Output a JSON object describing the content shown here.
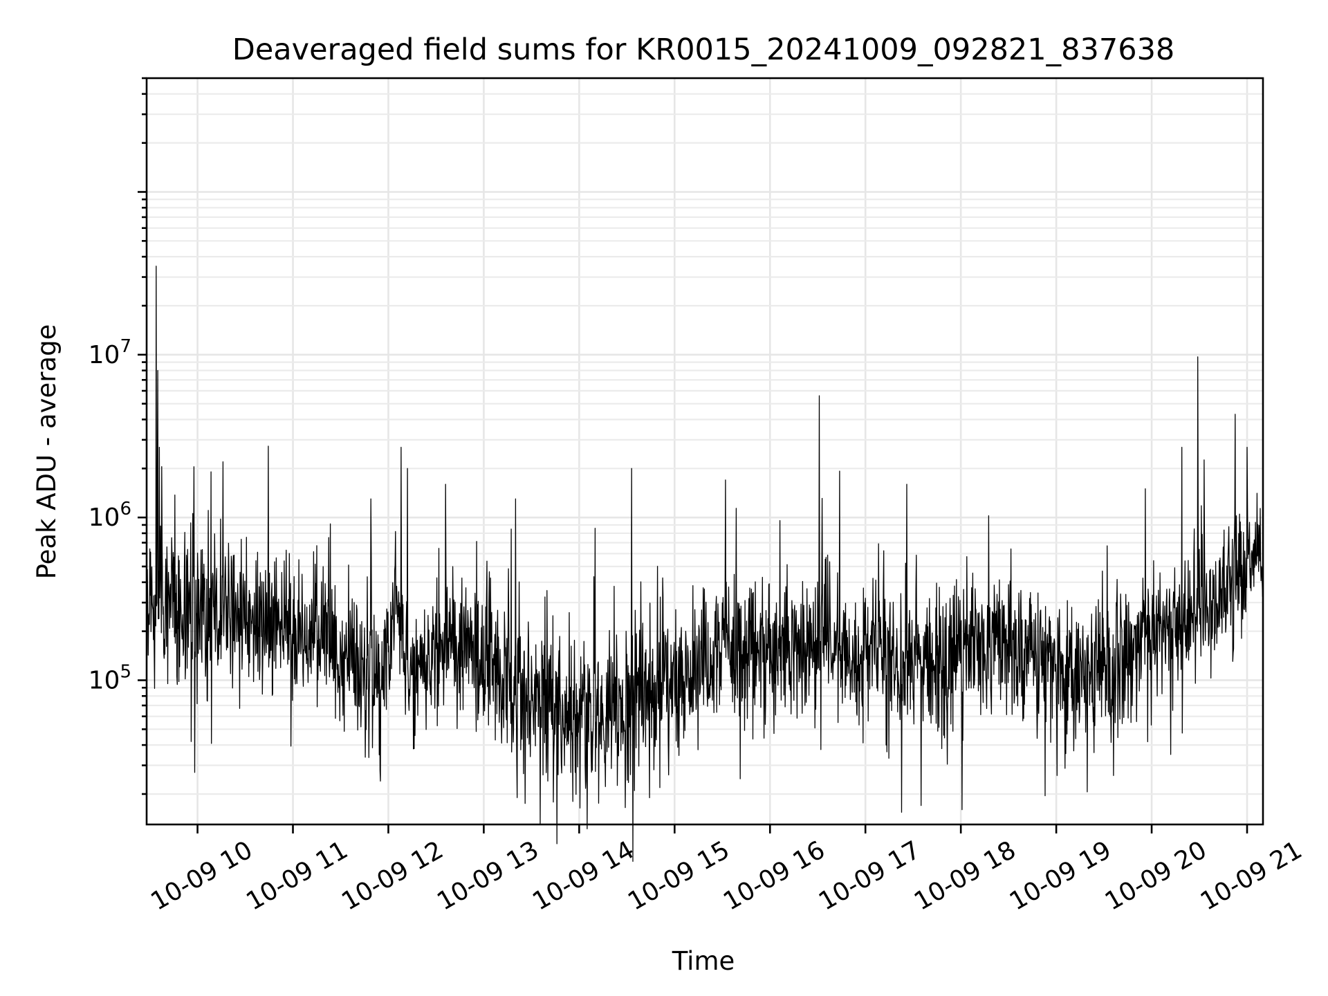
{
  "chart_data": {
    "type": "line",
    "title": "Deaveraged field sums for KR0015_20241009_092821_837638",
    "xlabel": "Time",
    "ylabel": "Peak ADU - average",
    "xscale": "time",
    "yscale": "log",
    "xlim": [
      "2024-10-09T09:28",
      "2024-10-09T21:10"
    ],
    "ylim": [
      13000,
      500000000
    ],
    "grid": true,
    "legend": "none",
    "line_color": "#000000",
    "x_ticks": [
      {
        "label": "10-09 10",
        "time": "2024-10-09T10:00"
      },
      {
        "label": "10-09 11",
        "time": "2024-10-09T11:00"
      },
      {
        "label": "10-09 12",
        "time": "2024-10-09T12:00"
      },
      {
        "label": "10-09 13",
        "time": "2024-10-09T13:00"
      },
      {
        "label": "10-09 14",
        "time": "2024-10-09T14:00"
      },
      {
        "label": "10-09 15",
        "time": "2024-10-09T15:00"
      },
      {
        "label": "10-09 16",
        "time": "2024-10-09T16:00"
      },
      {
        "label": "10-09 17",
        "time": "2024-10-09T17:00"
      },
      {
        "label": "10-09 18",
        "time": "2024-10-09T18:00"
      },
      {
        "label": "10-09 19",
        "time": "2024-10-09T19:00"
      },
      {
        "label": "10-09 20",
        "time": "2024-10-09T20:00"
      },
      {
        "label": "10-09 21",
        "time": "2024-10-09T21:00"
      }
    ],
    "y_ticks": [
      {
        "base": "10",
        "exp": "5",
        "value": 100000
      },
      {
        "base": "10",
        "exp": "6",
        "value": 1000000
      },
      {
        "base": "10",
        "exp": "7",
        "value": 10000000
      }
    ],
    "series": [
      {
        "baseline": [
          [
            "2024-10-09T09:28",
            330000
          ],
          [
            "2024-10-09T10:00",
            260000
          ],
          [
            "2024-10-09T10:30",
            240000
          ],
          [
            "2024-10-09T11:00",
            210000
          ],
          [
            "2024-10-09T11:30",
            160000
          ],
          [
            "2024-10-09T11:55",
            90000
          ],
          [
            "2024-10-09T12:05",
            350000
          ],
          [
            "2024-10-09T12:10",
            120000
          ],
          [
            "2024-10-09T12:30",
            170000
          ],
          [
            "2024-10-09T13:00",
            140000
          ],
          [
            "2024-10-09T13:30",
            80000
          ],
          [
            "2024-10-09T14:00",
            60000
          ],
          [
            "2024-10-09T14:30",
            70000
          ],
          [
            "2024-10-09T15:00",
            110000
          ],
          [
            "2024-10-09T15:30",
            150000
          ],
          [
            "2024-10-09T16:00",
            160000
          ],
          [
            "2024-10-09T16:30",
            170000
          ],
          [
            "2024-10-09T17:00",
            150000
          ],
          [
            "2024-10-09T17:30",
            120000
          ],
          [
            "2024-10-09T18:00",
            140000
          ],
          [
            "2024-10-09T18:30",
            180000
          ],
          [
            "2024-10-09T19:00",
            110000
          ],
          [
            "2024-10-09T19:30",
            120000
          ],
          [
            "2024-10-09T20:00",
            180000
          ],
          [
            "2024-10-09T20:30",
            280000
          ],
          [
            "2024-10-09T21:00",
            520000
          ],
          [
            "2024-10-09T21:10",
            600000
          ]
        ],
        "spikes": [
          [
            "2024-10-09T09:34",
            35000000
          ],
          [
            "2024-10-09T09:35",
            8000000
          ],
          [
            "2024-10-09T09:36",
            2700000
          ],
          [
            "2024-10-09T10:16",
            2200000
          ],
          [
            "2024-10-09T11:49",
            1300000
          ],
          [
            "2024-10-09T12:08",
            2700000
          ],
          [
            "2024-10-09T12:12",
            2000000
          ],
          [
            "2024-10-09T12:36",
            1600000
          ],
          [
            "2024-10-09T13:20",
            1300000
          ],
          [
            "2024-10-09T14:33",
            2000000
          ],
          [
            "2024-10-09T15:32",
            1700000
          ],
          [
            "2024-10-09T16:31",
            5600000
          ],
          [
            "2024-10-09T17:26",
            1600000
          ],
          [
            "2024-10-09T19:56",
            1500000
          ],
          [
            "2024-10-09T20:19",
            2700000
          ],
          [
            "2024-10-09T20:29",
            9700000
          ],
          [
            "2024-10-09T21:00",
            2700000
          ]
        ],
        "dips": [
          [
            "2024-10-09T09:56",
            42000
          ],
          [
            "2024-10-09T11:55",
            24000
          ],
          [
            "2024-10-09T13:21",
            19000
          ],
          [
            "2024-10-09T13:26",
            17500
          ],
          [
            "2024-10-09T13:56",
            18000
          ],
          [
            "2024-10-09T14:29",
            16500
          ],
          [
            "2024-10-09T17:13",
            40000
          ],
          [
            "2024-10-09T17:48",
            38000
          ],
          [
            "2024-10-09T19:36",
            26000
          ],
          [
            "2024-10-09T20:12",
            35000
          ]
        ]
      }
    ]
  }
}
